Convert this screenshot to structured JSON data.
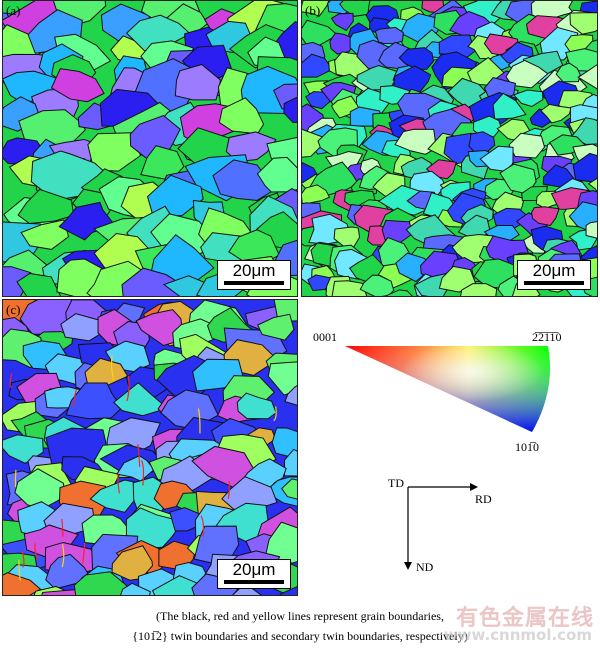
{
  "panels": [
    {
      "id": "a",
      "label": "(a)",
      "scale_text": "20μm"
    },
    {
      "id": "b",
      "label": "(b)",
      "scale_text": "20μm"
    },
    {
      "id": "c",
      "label": "(c)",
      "scale_text": "20μm"
    }
  ],
  "ipf_legend": {
    "corner_0001": "0001",
    "corner_2110": "2̅2̅1̅1̅0",
    "corner_1010": "101̅0",
    "colors": {
      "0001": "#ff0000",
      "2110": "#00ff00",
      "1010": "#0000ff"
    }
  },
  "axes": {
    "td_label": "TD",
    "rd_label": "RD",
    "nd_label": "ND"
  },
  "caption": {
    "line1": "(The black, red and yellow lines represent grain boundaries,",
    "line2": "{101̅2} twin boundaries and secondary twin boundaries, respectively)"
  },
  "watermark": {
    "text": "有色金属在线",
    "url": "www.cnnmol.com"
  }
}
